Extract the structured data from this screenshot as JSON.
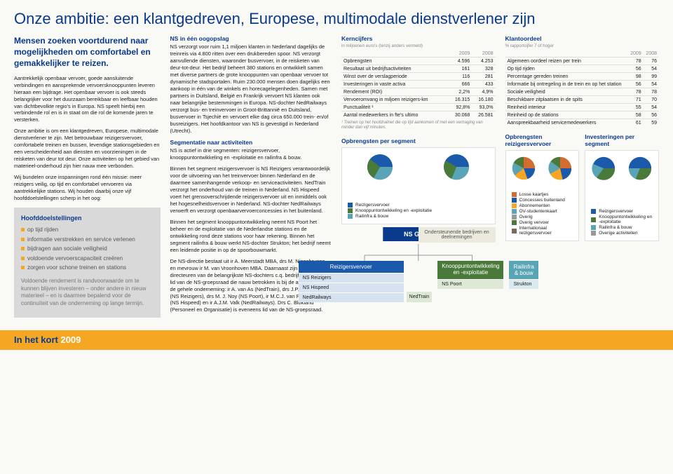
{
  "title": "Onze ambitie: een klantgedreven, Europese, multimodale dienstverlener zijn",
  "intro": "Mensen zoeken voortdurend naar mogelijkheden om comfortabel en gemakkelijker te reizen.",
  "col1": {
    "p1": "Aantrekkelijk openbaar vervoer, goede aansluitende verbindingen en aansprekende vervoersknooppunten leveren hieraan een bijdrage. Het openbaar vervoer is ook steeds belangrijker voor het duurzaam bereikbaar en leefbaar houden van dichtbevolkte regio's in Europa. NS speelt hierbij een verbindende rol en is in staat om die rol de komende jaren te versterken.",
    "p2": "Onze ambitie is om een klantgedreven, Europese, multimodale dienstverlener te zijn. Met betrouwbaar reizigersvervoer, comfortabele treinen en bussen, levendige stationsgebieden en een verscheidenheid aan diensten en voorzieningen in de reisketen van deur tot deur. Onze activiteiten op het gebied van materieel-onderhoud zijn hier nauw mee verbonden.",
    "p3": "Wij bundelen onze inspanningen rond één missie: meer reizigers veilig, op tijd en comfortabel vervoeren via aantrekkelijke stations. Wij houden daarbij onze vijf hoofddoelstellingen scherp in het oog:"
  },
  "bullets": {
    "title": "Hoofddoelstellingen",
    "items": [
      "op tijd rijden",
      "informatie verstrekken en service verlenen",
      "bijdragen aan sociale veiligheid",
      "voldoende vervoerscapaciteit creëren",
      "zorgen voor schone treinen en stations"
    ],
    "foot": "Voldoende rendement is randvoorwaarde om te kunnen blijven investeren – onder andere in nieuw materieel – en is daarmee bepalend voor de continuïteit van de onderneming op lange termijn."
  },
  "col2": {
    "h1": "NS in één oogopslag",
    "p1": "NS verzorgt voor ruim 1,1 miljoen klanten in Nederland dagelijks de treinreis via 4.800 ritten over een drukbereden spoor. NS verzorgt aanvullende diensten, waaronder busvervoer, in de reisketen van deur-tot-deur. Het bedrijf beheert 380 stations en ontwikkelt samen met diverse partners de grote knooppunten van openbaar vervoer tot dynamische stadsportalen. Ruim 230.000 mensen doen dagelijks een aankoop in één van de winkels en horecagelegenheden. Samen met partners in Duitsland, België en Frankrijk vervoert NS klanten ook naar belangrijke bestemmingen in Europa. NS-dochter NedRailways verzorgt bus- en treinvervoer in Groot-Brittannië en Duitsland, busvervoer in Tsjechië en vervoert elke dag circa 650.000 trein- en/of busreizigers. Het hoofdkantoor van NS is gevestigd in Nederland (Utrecht).",
    "h2": "Segmentatie naar activiteiten",
    "p2": "NS is actief in drie segmenten: reizigersvervoer, knooppuntontwikkeling en -exploitatie en railinfra & bouw.",
    "p3": "Binnen het segment reizigersvervoer is NS Reizigers verantwoordelijk voor de uitvoering van het treinvervoer binnen Nederland en de daarmee samenhangende verkoop- en serviceactiviteiten. NedTrain verzorgt het onderhoud van de treinen in Nederland. NS Hispeed voert het grensoverschrijdende reizigersvervoer uit en inmiddels ook het hogesnelheidsvervoer in Nederland. NS-dochter NedRailways verwerft en verzorgt openbaarvervoerconcessies in het buitenland.",
    "p4": "Binnen het segment knooppuntontwikkeling neemt NS Poort het beheer en de exploitatie van de Nederlandse stations en de ontwikkeling rond deze stations voor haar rekening. Binnen het segment railinfra & bouw werkt NS-dochter Strukton; het bedrijf neemt een leidende positie in op de spoorbouwmarkt.",
    "p5": "De NS-directie bestaat uit ir A. Meerstadt MBA, drs M. Niggebrugge en mevrouw ir M. van Vroonhoven MBA. Daarnaast zijn de volgende directeuren van de belangrijkste NS-dochters c.q. bedrijfsonderdelen lid van de NS-groepsraad die nauw betrokken is bij de aansturing van de gehele onderneming: ir A. van As (NedTrain), drs J.P.B. Huberts (NS Reizigers), drs M. J. Noy (NS Poort), ir M.C.J. van Roozendaal (NS Hispeed) en ir A.J.M. Valk (NedRailways). Drs C. Blokland (Personeel en Organisatie) is eveneens lid van de NS-groepsraad."
  },
  "kern": {
    "title": "Kerncijfers",
    "unit": "in miljoenen euro's (tenzij anders vermeld)",
    "years": [
      "2009",
      "2008"
    ],
    "rows": [
      [
        "Opbrengsten",
        "4.596",
        "4.253"
      ],
      [
        "Resultaat uit bedrijfsactiviteiten",
        "161",
        "328"
      ],
      [
        "Winst over de verslagperiode",
        "116",
        "281"
      ],
      [
        "Investeringen in vaste activa",
        "666",
        "433"
      ],
      [
        "Rendement (ROI)",
        "2,2%",
        "4,9%"
      ],
      [
        "Vervoeromvang in miljoen reizigers-km",
        "16.315",
        "16.180"
      ],
      [
        "Punctualiteit ¹",
        "92,8%",
        "93,0%"
      ],
      [
        "Aantal medewerkers in fte's ultimo",
        "30.068",
        "26.581"
      ]
    ],
    "foot": "¹ Treinen op het hoofdrailnet die op tijd aankomen of met een vertraging van minder dan vijf minuten."
  },
  "klant": {
    "title": "Klantoordeel",
    "unit": "% rapportcijfer 7 of hoger",
    "years": [
      "2009",
      "2008"
    ],
    "rows": [
      [
        "Algemeen oordeel reizen per trein",
        "78",
        "76"
      ],
      [
        "Op tijd rijden",
        "56",
        "54"
      ],
      [
        "Percentage gereden treinen",
        "98",
        "99"
      ],
      [
        "Informatie bij ontregeling in de trein en op het station",
        "56",
        "54"
      ],
      [
        "Sociale veiligheid",
        "78",
        "78"
      ],
      [
        "Beschikbare zitplaatsen in de spits",
        "71",
        "70"
      ],
      [
        "Reinheid interieur",
        "55",
        "54"
      ],
      [
        "Reinheid op de stations",
        "58",
        "56"
      ],
      [
        "Aanspreekbaarheid servicemedewerkers",
        "61",
        "59"
      ]
    ]
  },
  "segments": {
    "s1": {
      "title": "Opbrengsten per segment",
      "legend": [
        {
          "c": "#1b5aab",
          "t": "Reizigersvervoer"
        },
        {
          "c": "#4a7a3a",
          "t": "Knooppuntontwikkeling en -exploitatie"
        },
        {
          "c": "#5aa5b5",
          "t": "Railinfra & bouw"
        }
      ]
    },
    "s2": {
      "title": "Opbrengsten reizigersvervoer",
      "legend": [
        {
          "c": "#d46b2f",
          "t": "Losse kaartjes"
        },
        {
          "c": "#1b5aab",
          "t": "Concessies buitenland"
        },
        {
          "c": "#f5a623",
          "t": "Abonnementen"
        },
        {
          "c": "#5aa5b5",
          "t": "OV-studentenkaart"
        },
        {
          "c": "#999",
          "t": "Overig"
        },
        {
          "c": "#4a7a3a",
          "t": "Overig vervoer"
        },
        {
          "c": "#7a6a58",
          "t": "Internationaal reizigersvervoer"
        }
      ]
    },
    "s3": {
      "title": "Investeringen per segment",
      "legend": [
        {
          "c": "#1b5aab",
          "t": "Reizigersvervoer"
        },
        {
          "c": "#4a7a3a",
          "t": "Knooppuntontwikkeling en -exploitatie"
        },
        {
          "c": "#5aa5b5",
          "t": "Railinfra & bouw"
        },
        {
          "c": "#999",
          "t": "Overige activiteiten"
        }
      ]
    }
  },
  "org": {
    "root": "NS Groep",
    "side": "Ondersteunende bedrijven en deelnemingen",
    "boxes": [
      {
        "cls": "rv",
        "hdr": "Reizigersvervoer",
        "subs": [
          "NS Reizigers",
          "NS Hispeed",
          "NedRailways"
        ],
        "extra": "NedTrain"
      },
      {
        "cls": "kp",
        "hdr": "Knooppuntontwikkeling en -exploitatie",
        "subs": [
          "NS Poort"
        ]
      },
      {
        "cls": "ri",
        "hdr": "Railinfra & bouw",
        "subs": [
          "Strukton"
        ]
      }
    ]
  },
  "footer": {
    "label": "In het kort",
    "year": "2009"
  },
  "colors": {
    "primary": "#0a3a8b",
    "accent": "#f5a623"
  }
}
